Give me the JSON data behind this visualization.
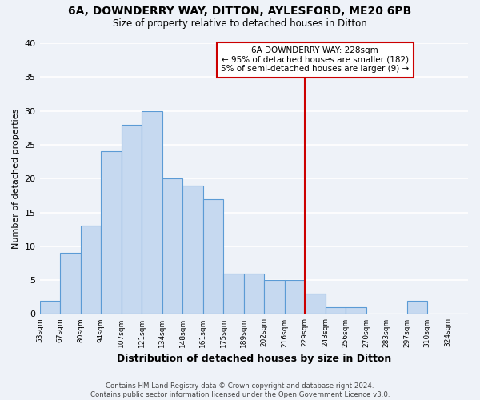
{
  "title1": "6A, DOWNDERRY WAY, DITTON, AYLESFORD, ME20 6PB",
  "title2": "Size of property relative to detached houses in Ditton",
  "xlabel": "Distribution of detached houses by size in Ditton",
  "ylabel": "Number of detached properties",
  "bin_labels": [
    "53sqm",
    "67sqm",
    "80sqm",
    "94sqm",
    "107sqm",
    "121sqm",
    "134sqm",
    "148sqm",
    "161sqm",
    "175sqm",
    "189sqm",
    "202sqm",
    "216sqm",
    "229sqm",
    "243sqm",
    "256sqm",
    "270sqm",
    "283sqm",
    "297sqm",
    "310sqm",
    "324sqm"
  ],
  "bar_heights": [
    2,
    9,
    13,
    24,
    28,
    30,
    20,
    19,
    17,
    6,
    6,
    5,
    5,
    3,
    1,
    1,
    0,
    0,
    2,
    0,
    0
  ],
  "bar_color": "#c6d9f0",
  "bar_edge_color": "#5b9bd5",
  "vline_x_idx": 13,
  "vline_color": "#cc0000",
  "annotation_line1": "6A DOWNDERRY WAY: 228sqm",
  "annotation_line2": "← 95% of detached houses are smaller (182)",
  "annotation_line3": "5% of semi-detached houses are larger (9) →",
  "annotation_box_color": "#ffffff",
  "annotation_box_edge": "#cc0000",
  "ylim": [
    0,
    40
  ],
  "yticks": [
    0,
    5,
    10,
    15,
    20,
    25,
    30,
    35,
    40
  ],
  "footer": "Contains HM Land Registry data © Crown copyright and database right 2024.\nContains public sector information licensed under the Open Government Licence v3.0.",
  "background_color": "#eef2f8",
  "grid_color": "#ffffff"
}
